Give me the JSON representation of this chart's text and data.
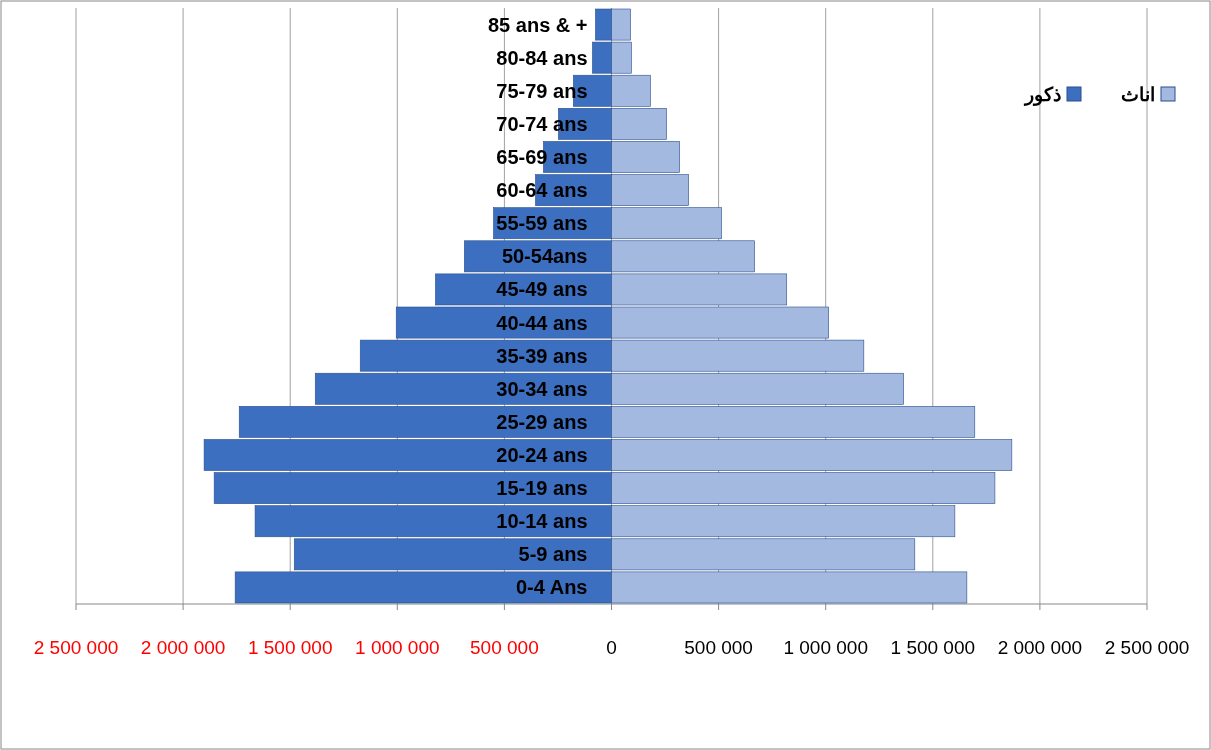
{
  "chart_data": {
    "type": "bar",
    "orientation": "horizontal",
    "categories": [
      "85 ans & +",
      "80-84 ans",
      "75-79 ans",
      "70-74 ans",
      "65-69 ans",
      "60-64 ans",
      "55-59 ans",
      "50-54ans",
      "45-49 ans",
      "40-44 ans",
      "35-39 ans",
      "30-34 ans",
      "25-29 ans",
      "20-24 ans",
      "15-19 ans",
      "10-14 ans",
      "5-9 ans",
      "0-4 Ans"
    ],
    "series": [
      {
        "name": "ذكور",
        "color": "#3d6fc0",
        "values": [
          -75000,
          -89000,
          -178000,
          -248000,
          -318000,
          -355000,
          -551000,
          -687000,
          -822000,
          -1005000,
          -1173000,
          -1383000,
          -1738000,
          -1902000,
          -1855000,
          -1664000,
          -1481000,
          -1757000
        ]
      },
      {
        "name": "اناث",
        "color": "#a4b9e0",
        "values": [
          89000,
          93000,
          182000,
          257000,
          318000,
          360000,
          514000,
          668000,
          818000,
          1014000,
          1178000,
          1364000,
          1696000,
          1869000,
          1790000,
          1603000,
          1416000,
          1659000
        ]
      }
    ],
    "xlim": [
      -2500000,
      2500000
    ],
    "xticks": [
      {
        "value": -2500000,
        "label": "2 500 000"
      },
      {
        "value": -2000000,
        "label": "2 000 000"
      },
      {
        "value": -1500000,
        "label": "1 500 000"
      },
      {
        "value": -1000000,
        "label": "1 000 000"
      },
      {
        "value": -500000,
        "label": "500 000"
      },
      0,
      {
        "value": 500000,
        "label": "500 000"
      },
      {
        "value": 1000000,
        "label": "1 000 000"
      },
      {
        "value": 1500000,
        "label": "1 500 000"
      },
      {
        "value": 2000000,
        "label": "2 000 000"
      },
      {
        "value": 2500000,
        "label": "2 500 000"
      }
    ],
    "grid": "x",
    "legend": "right",
    "stacked": true
  }
}
